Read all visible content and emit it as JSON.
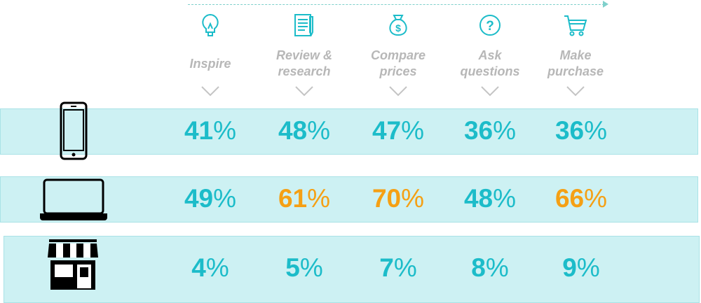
{
  "colors": {
    "teal": "#1cbcc9",
    "orange": "#f5a014",
    "label": "#b7b7b7",
    "band": "#cdf1f3"
  },
  "chart_data": {
    "type": "table",
    "categories": [
      "Inspire",
      "Review &\nresearch",
      "Compare\nprices",
      "Ask\nquestions",
      "Make\npurchase"
    ],
    "rows": [
      {
        "icon": "smartphone-icon",
        "values": [
          41,
          48,
          47,
          36,
          36
        ],
        "highlight": [
          false,
          false,
          false,
          false,
          false
        ]
      },
      {
        "icon": "laptop-icon",
        "values": [
          49,
          61,
          70,
          48,
          66
        ],
        "highlight": [
          false,
          true,
          true,
          false,
          true
        ]
      },
      {
        "icon": "store-icon",
        "values": [
          4,
          5,
          7,
          8,
          9
        ],
        "highlight": [
          false,
          false,
          false,
          false,
          false
        ]
      }
    ],
    "unit": "%"
  },
  "stage_icons": [
    "lightbulb-icon",
    "document-pencil-icon",
    "money-bag-icon",
    "question-icon",
    "shopping-cart-icon"
  ]
}
